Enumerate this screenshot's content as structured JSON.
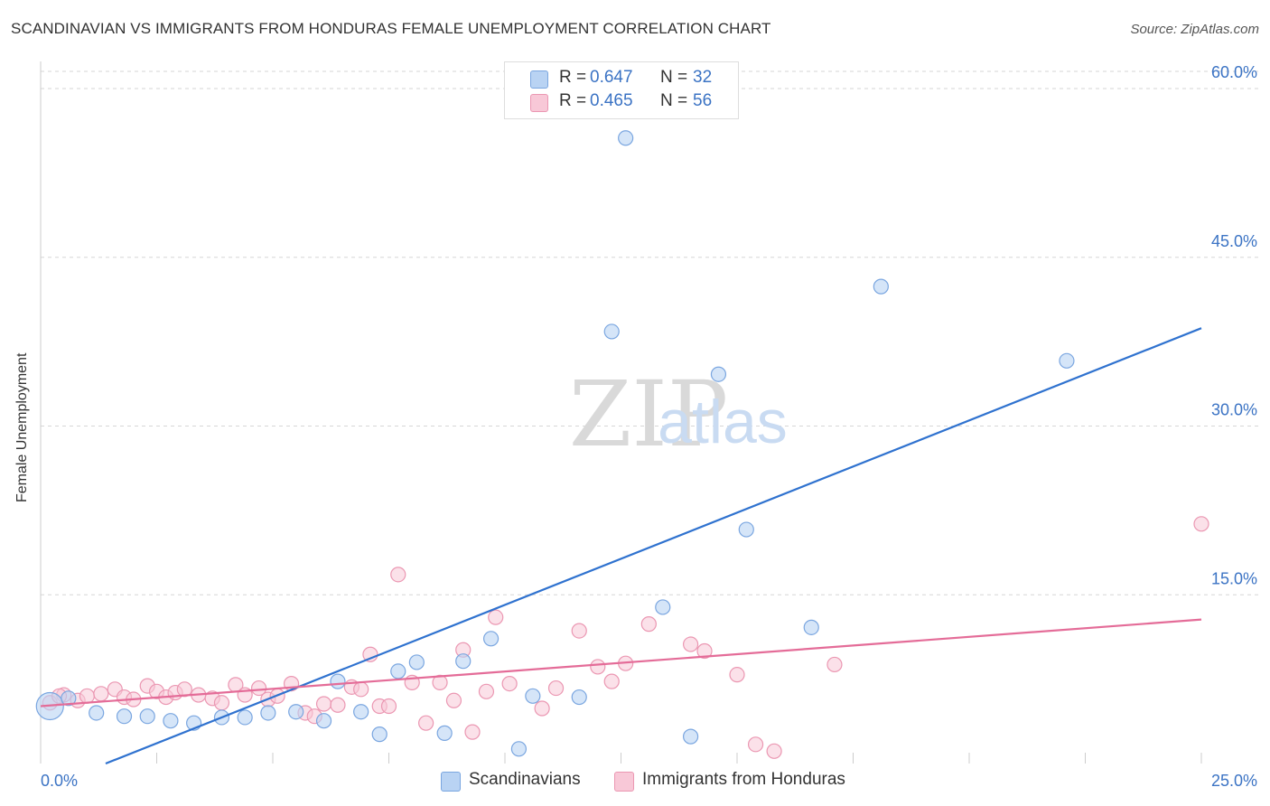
{
  "header": {
    "title": "SCANDINAVIAN VS IMMIGRANTS FROM HONDURAS FEMALE UNEMPLOYMENT CORRELATION CHART",
    "source": "Source: ZipAtlas.com"
  },
  "watermark": {
    "zip": "ZIP",
    "atlas": "atlas"
  },
  "legend": {
    "scandinavian": {
      "r_label": "R = ",
      "r_value": "0.647",
      "n_label": "N = ",
      "n_value": "32"
    },
    "honduras": {
      "r_label": "R = ",
      "r_value": "0.465",
      "n_label": "N = ",
      "n_value": "56"
    }
  },
  "colors": {
    "blue_fill": "#b9d3f3",
    "blue_stroke": "#7aa6e0",
    "blue_line": "#2f72cf",
    "pink_fill": "#f8c8d7",
    "pink_stroke": "#eb97b2",
    "pink_line": "#e46c98",
    "axis_text": "#3b73c4",
    "grid": "#d6d6d6"
  },
  "chart_data": {
    "type": "scatter",
    "title": "SCANDINAVIAN VS IMMIGRANTS FROM HONDURAS FEMALE UNEMPLOYMENT CORRELATION CHART",
    "xlabel": "",
    "ylabel": "Female Unemployment",
    "xlim": [
      0,
      25
    ],
    "ylim": [
      0,
      60
    ],
    "x_tick_labels": [
      "0.0%",
      "25.0%"
    ],
    "y_ticks": [
      15,
      30,
      45,
      60
    ],
    "y_tick_labels": [
      "15.0%",
      "30.0%",
      "45.0%",
      "60.0%"
    ],
    "grid": true,
    "legend_position": "top-center",
    "series": [
      {
        "name": "Scandinavians",
        "color": "#b9d3f3",
        "r": 0.647,
        "n": 32,
        "trend": {
          "x": [
            1.4,
            25
          ],
          "y": [
            0,
            38.7
          ]
        },
        "points": [
          {
            "x": 0.2,
            "y": 5.1,
            "big": true
          },
          {
            "x": 1.2,
            "y": 4.5
          },
          {
            "x": 1.8,
            "y": 4.2
          },
          {
            "x": 2.3,
            "y": 4.2
          },
          {
            "x": 2.8,
            "y": 3.8
          },
          {
            "x": 3.3,
            "y": 3.6
          },
          {
            "x": 3.9,
            "y": 4.1
          },
          {
            "x": 4.4,
            "y": 4.1
          },
          {
            "x": 4.9,
            "y": 4.5
          },
          {
            "x": 5.5,
            "y": 4.6
          },
          {
            "x": 6.1,
            "y": 3.8
          },
          {
            "x": 6.4,
            "y": 7.3
          },
          {
            "x": 6.9,
            "y": 4.6
          },
          {
            "x": 7.3,
            "y": 2.6
          },
          {
            "x": 7.7,
            "y": 8.2
          },
          {
            "x": 8.1,
            "y": 9.0
          },
          {
            "x": 8.7,
            "y": 2.7
          },
          {
            "x": 9.1,
            "y": 9.1
          },
          {
            "x": 9.7,
            "y": 11.1
          },
          {
            "x": 10.3,
            "y": 1.3
          },
          {
            "x": 10.6,
            "y": 6.0
          },
          {
            "x": 11.6,
            "y": 5.9
          },
          {
            "x": 12.3,
            "y": 38.4
          },
          {
            "x": 12.6,
            "y": 55.6
          },
          {
            "x": 13.4,
            "y": 13.9
          },
          {
            "x": 14.0,
            "y": 2.4
          },
          {
            "x": 14.6,
            "y": 34.6
          },
          {
            "x": 15.2,
            "y": 20.8
          },
          {
            "x": 16.6,
            "y": 12.1
          },
          {
            "x": 18.1,
            "y": 42.4
          },
          {
            "x": 22.1,
            "y": 35.8
          },
          {
            "x": 0.6,
            "y": 5.8
          }
        ]
      },
      {
        "name": "Immigrants from Honduras",
        "color": "#f8c8d7",
        "r": 0.465,
        "n": 56,
        "trend": {
          "x": [
            0,
            25
          ],
          "y": [
            5.1,
            12.8
          ]
        },
        "points": [
          {
            "x": 0.2,
            "y": 5.4
          },
          {
            "x": 0.5,
            "y": 6.1
          },
          {
            "x": 0.8,
            "y": 5.6
          },
          {
            "x": 1.0,
            "y": 6.0
          },
          {
            "x": 1.3,
            "y": 6.2
          },
          {
            "x": 1.6,
            "y": 6.6
          },
          {
            "x": 1.8,
            "y": 5.9
          },
          {
            "x": 2.0,
            "y": 5.7
          },
          {
            "x": 2.3,
            "y": 6.9
          },
          {
            "x": 2.5,
            "y": 6.4
          },
          {
            "x": 2.7,
            "y": 5.9
          },
          {
            "x": 2.9,
            "y": 6.3
          },
          {
            "x": 3.1,
            "y": 6.6
          },
          {
            "x": 3.4,
            "y": 6.1
          },
          {
            "x": 3.7,
            "y": 5.8
          },
          {
            "x": 3.9,
            "y": 5.4
          },
          {
            "x": 4.2,
            "y": 7.0
          },
          {
            "x": 4.4,
            "y": 6.1
          },
          {
            "x": 4.7,
            "y": 6.7
          },
          {
            "x": 4.9,
            "y": 5.7
          },
          {
            "x": 5.1,
            "y": 6.0
          },
          {
            "x": 5.4,
            "y": 7.1
          },
          {
            "x": 5.7,
            "y": 4.5
          },
          {
            "x": 5.9,
            "y": 4.2
          },
          {
            "x": 6.1,
            "y": 5.3
          },
          {
            "x": 6.4,
            "y": 5.2
          },
          {
            "x": 6.7,
            "y": 6.8
          },
          {
            "x": 6.9,
            "y": 6.6
          },
          {
            "x": 7.1,
            "y": 9.7
          },
          {
            "x": 7.3,
            "y": 5.1
          },
          {
            "x": 7.5,
            "y": 5.1
          },
          {
            "x": 7.7,
            "y": 16.8
          },
          {
            "x": 8.0,
            "y": 7.2
          },
          {
            "x": 8.3,
            "y": 3.6
          },
          {
            "x": 8.6,
            "y": 7.2
          },
          {
            "x": 8.9,
            "y": 5.6
          },
          {
            "x": 9.1,
            "y": 10.1
          },
          {
            "x": 9.3,
            "y": 2.8
          },
          {
            "x": 9.6,
            "y": 6.4
          },
          {
            "x": 9.8,
            "y": 13.0
          },
          {
            "x": 10.1,
            "y": 7.1
          },
          {
            "x": 10.8,
            "y": 4.9
          },
          {
            "x": 11.1,
            "y": 6.7
          },
          {
            "x": 11.6,
            "y": 11.8
          },
          {
            "x": 12.0,
            "y": 8.6
          },
          {
            "x": 12.3,
            "y": 7.3
          },
          {
            "x": 12.6,
            "y": 8.9
          },
          {
            "x": 13.1,
            "y": 12.4
          },
          {
            "x": 14.0,
            "y": 10.6
          },
          {
            "x": 14.3,
            "y": 10.0
          },
          {
            "x": 15.0,
            "y": 7.9
          },
          {
            "x": 15.4,
            "y": 1.7
          },
          {
            "x": 15.8,
            "y": 1.1
          },
          {
            "x": 17.1,
            "y": 8.8
          },
          {
            "x": 25.0,
            "y": 21.3
          },
          {
            "x": 0.4,
            "y": 6.0
          }
        ]
      }
    ]
  }
}
